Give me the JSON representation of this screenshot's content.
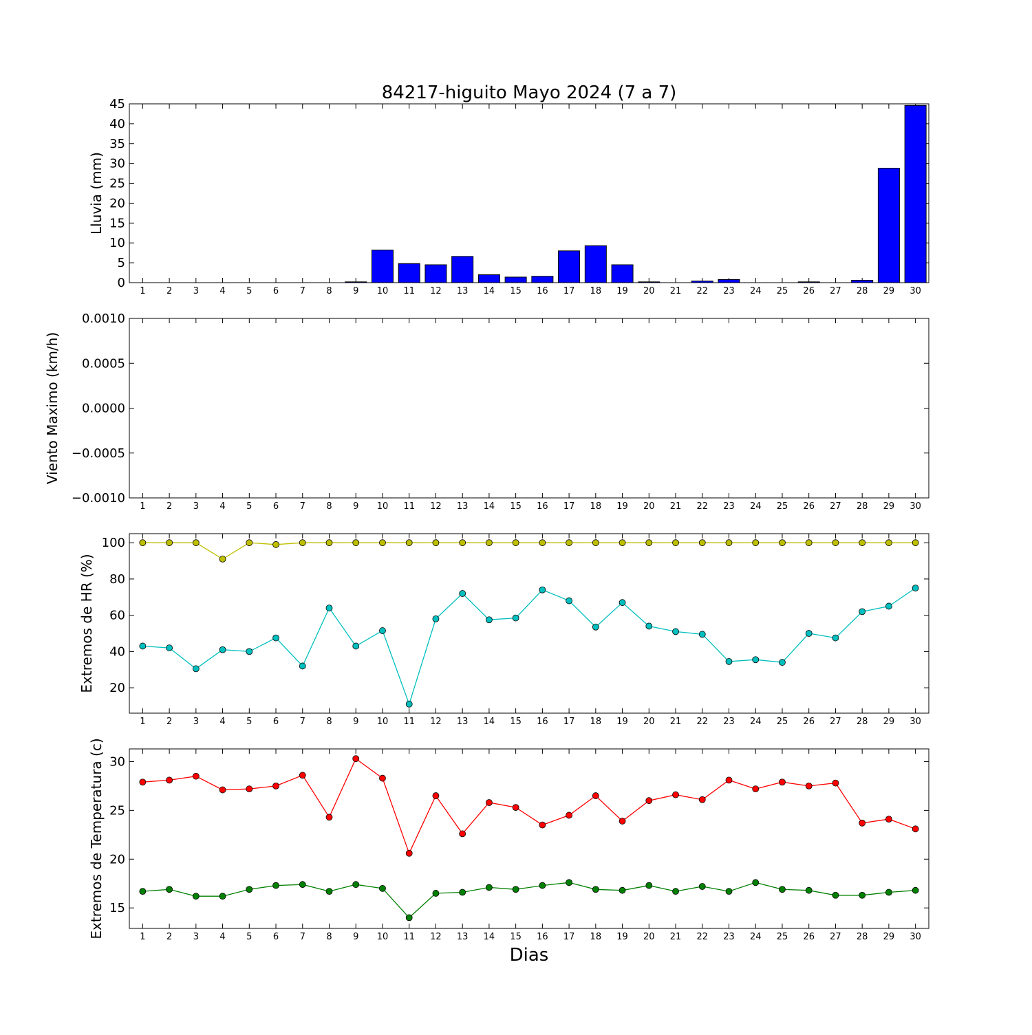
{
  "title": "84217-higuito Mayo 2024  (7 a 7)",
  "xlabel": "Dias",
  "days": [
    1,
    2,
    3,
    4,
    5,
    6,
    7,
    8,
    9,
    10,
    11,
    12,
    13,
    14,
    15,
    16,
    17,
    18,
    19,
    20,
    21,
    22,
    23,
    24,
    25,
    26,
    27,
    28,
    29,
    30
  ],
  "chart_data": [
    {
      "type": "bar",
      "ylabel": "Lluvia (mm)",
      "xlim": [
        0.5,
        30.5
      ],
      "ylim": [
        0,
        45
      ],
      "yticks": [
        0,
        5,
        10,
        15,
        20,
        25,
        30,
        35,
        40,
        45
      ],
      "ytick_labels": [
        "0",
        "5",
        "10",
        "15",
        "20",
        "25",
        "30",
        "35",
        "40",
        "45"
      ],
      "color": "#0000ff",
      "x": [
        1,
        2,
        3,
        4,
        5,
        6,
        7,
        8,
        9,
        10,
        11,
        12,
        13,
        14,
        15,
        16,
        17,
        18,
        19,
        20,
        21,
        22,
        23,
        24,
        25,
        26,
        27,
        28,
        29,
        30
      ],
      "values": [
        0,
        0,
        0,
        0,
        0,
        0,
        0,
        0,
        0.2,
        8.2,
        4.8,
        4.5,
        6.6,
        2.0,
        1.4,
        1.6,
        8.0,
        9.3,
        4.5,
        0.2,
        0,
        0.4,
        0.8,
        0,
        0,
        0.2,
        0,
        0.6,
        28.8,
        44.6
      ]
    },
    {
      "type": "line",
      "ylabel": "Viento Maximo (km/h)",
      "xlim": [
        0.5,
        30.5
      ],
      "ylim": [
        -0.001,
        0.001
      ],
      "yticks": [
        -0.001,
        -0.0005,
        0,
        0.0005,
        0.001
      ],
      "ytick_labels": [
        "−0.0010",
        "−0.0005",
        "0.0000",
        "0.0005",
        "0.0010"
      ],
      "series": []
    },
    {
      "type": "line",
      "ylabel": "Extremos de HR (%)",
      "xlim": [
        0.5,
        30.5
      ],
      "ylim": [
        6,
        105
      ],
      "yticks": [
        20,
        40,
        60,
        80,
        100
      ],
      "ytick_labels": [
        "20",
        "40",
        "60",
        "80",
        "100"
      ],
      "x": [
        1,
        2,
        3,
        4,
        5,
        6,
        7,
        8,
        9,
        10,
        11,
        12,
        13,
        14,
        15,
        16,
        17,
        18,
        19,
        20,
        21,
        22,
        23,
        24,
        25,
        26,
        27,
        28,
        29,
        30
      ],
      "series": [
        {
          "color": "#bfbf00",
          "values": [
            100,
            100,
            100,
            91,
            100,
            99,
            100,
            100,
            100,
            100,
            100,
            100,
            100,
            100,
            100,
            100,
            100,
            100,
            100,
            100,
            100,
            100,
            100,
            100,
            100,
            100,
            100,
            100,
            100,
            100
          ]
        },
        {
          "color": "#00bfbf",
          "values": [
            43,
            42,
            30.5,
            41,
            40,
            47.5,
            32,
            64,
            43,
            51.5,
            11,
            58,
            72,
            57.5,
            58.5,
            74,
            68,
            53.5,
            67,
            54,
            51,
            49.5,
            34.5,
            35.5,
            34,
            50,
            47.5,
            62,
            65,
            75
          ]
        }
      ]
    },
    {
      "type": "line",
      "ylabel": "Extremos de Temperatura (c)",
      "xlim": [
        0.5,
        30.5
      ],
      "ylim": [
        12.9,
        31.3
      ],
      "yticks": [
        15,
        20,
        25,
        30
      ],
      "ytick_labels": [
        "15",
        "20",
        "25",
        "30"
      ],
      "x": [
        1,
        2,
        3,
        4,
        5,
        6,
        7,
        8,
        9,
        10,
        11,
        12,
        13,
        14,
        15,
        16,
        17,
        18,
        19,
        20,
        21,
        22,
        23,
        24,
        25,
        26,
        27,
        28,
        29,
        30
      ],
      "series": [
        {
          "color": "#ff0000",
          "values": [
            27.9,
            28.1,
            28.5,
            27.1,
            27.2,
            27.5,
            28.6,
            24.3,
            30.3,
            28.3,
            20.6,
            26.5,
            22.6,
            25.8,
            25.3,
            23.5,
            24.5,
            26.5,
            23.9,
            26.0,
            26.6,
            26.1,
            28.1,
            27.2,
            27.9,
            27.5,
            27.8,
            23.7,
            24.1,
            23.1
          ]
        },
        {
          "color": "#008000",
          "values": [
            16.7,
            16.9,
            16.2,
            16.2,
            16.9,
            17.3,
            17.4,
            16.7,
            17.4,
            17.0,
            14.0,
            16.5,
            16.6,
            17.1,
            16.9,
            17.3,
            17.6,
            16.9,
            16.8,
            17.3,
            16.7,
            17.2,
            16.7,
            17.6,
            16.9,
            16.8,
            16.3,
            16.3,
            16.6,
            16.8
          ]
        }
      ]
    }
  ]
}
